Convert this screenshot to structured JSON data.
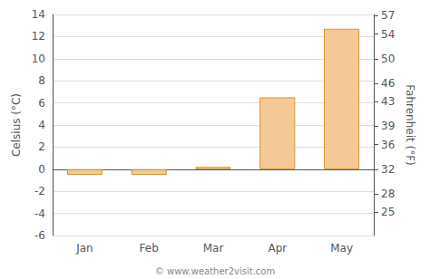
{
  "chart_data": {
    "type": "bar",
    "categories": [
      "Jan",
      "Feb",
      "Mar",
      "Apr",
      "May"
    ],
    "values": [
      -0.5,
      -0.5,
      0.2,
      6.5,
      12.7
    ],
    "color": "#f5c897",
    "ylabel": "Celsius (°C)",
    "y2label": "Fahrenheit (°F)",
    "ylim": [
      -6,
      14
    ],
    "yticks": [
      -6,
      -4,
      -2,
      0,
      2,
      4,
      6,
      8,
      10,
      12,
      14
    ],
    "y2lim": [
      21.2,
      57.2
    ],
    "y2ticks": [
      25,
      28,
      32,
      36,
      39,
      43,
      46,
      50,
      54,
      57
    ],
    "grid": true,
    "annotation": "© www.weather2visit.com"
  }
}
